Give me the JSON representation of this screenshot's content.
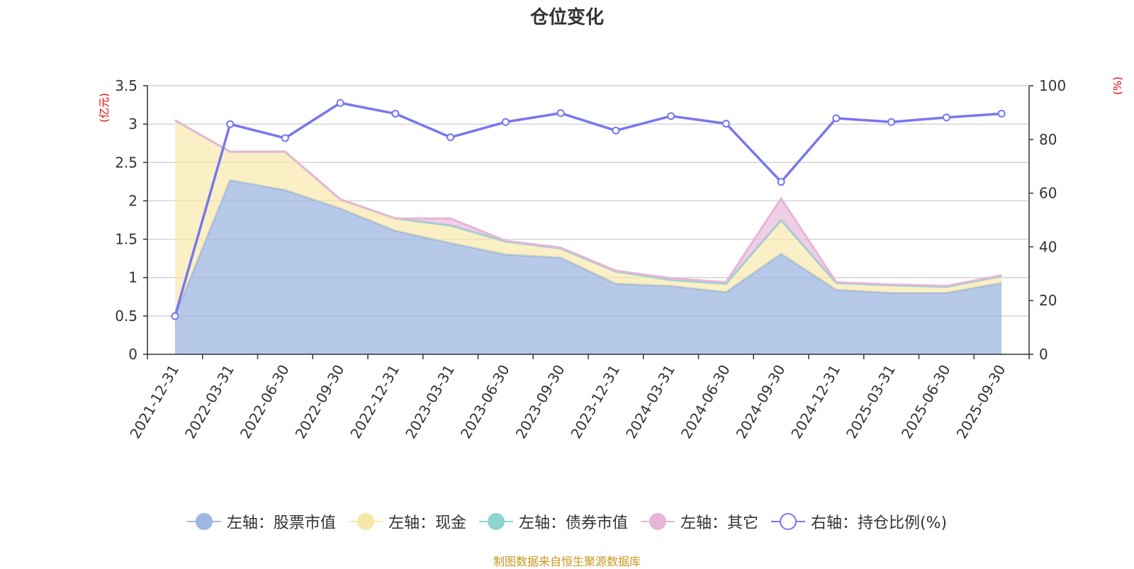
{
  "colors": {
    "stock": "#9db7e0",
    "cash": "#f7e7a6",
    "bond": "#8dd4d2",
    "other": "#e6b6d8",
    "ratio": "#7777ee",
    "unit": "#ee0000",
    "source": "#c8961e"
  },
  "source_note": "制图数据来自恒生聚源数据库",
  "chart_data": {
    "type": "area",
    "title": "仓位变化",
    "categories": [
      "2021-12-31",
      "2022-03-31",
      "2022-06-30",
      "2022-09-30",
      "2022-12-31",
      "2023-03-31",
      "2023-06-30",
      "2023-09-30",
      "2023-12-31",
      "2024-03-31",
      "2024-06-30",
      "2024-09-30",
      "2024-12-31",
      "2025-03-31",
      "2025-06-30",
      "2025-09-30"
    ],
    "left_axis": {
      "unit": "(亿元)",
      "ylim": [
        0,
        3.5
      ],
      "ticks": [
        "0",
        "0.5",
        "1",
        "1.5",
        "2",
        "2.5",
        "3",
        "3.5"
      ]
    },
    "right_axis": {
      "unit": "(%)",
      "ylim": [
        0,
        100
      ],
      "ticks": [
        "0",
        "20",
        "40",
        "60",
        "80",
        "100"
      ]
    },
    "grid": true,
    "series": [
      {
        "name": "左轴：股票市值",
        "axis": "left",
        "type": "area",
        "values": [
          0.5,
          2.27,
          2.14,
          1.9,
          1.61,
          1.45,
          1.3,
          1.26,
          0.92,
          0.89,
          0.81,
          1.31,
          0.84,
          0.8,
          0.8,
          0.93
        ]
      },
      {
        "name": "左轴：现金",
        "axis": "left",
        "type": "area",
        "values": [
          2.55,
          0.37,
          0.5,
          0.12,
          0.16,
          0.23,
          0.17,
          0.12,
          0.16,
          0.08,
          0.11,
          0.44,
          0.09,
          0.1,
          0.08,
          0.09
        ]
      },
      {
        "name": "左轴：债券市值",
        "axis": "left",
        "type": "area",
        "values": [
          0,
          0,
          0,
          0,
          0,
          0,
          0,
          0,
          0,
          0,
          0,
          0,
          0,
          0,
          0,
          0
        ]
      },
      {
        "name": "左轴：其它",
        "axis": "left",
        "type": "area",
        "values": [
          0,
          0,
          0,
          0,
          0,
          0.09,
          0.01,
          0.01,
          0.01,
          0.02,
          0.02,
          0.28,
          0.01,
          0.01,
          0.01,
          0.01
        ]
      },
      {
        "name": "右轴：持仓比例(%)",
        "axis": "right",
        "type": "line",
        "values": [
          14.2,
          85.7,
          80.5,
          93.6,
          89.6,
          80.8,
          86.5,
          89.8,
          83.3,
          88.7,
          85.9,
          64.2,
          87.9,
          86.5,
          88.2,
          89.6
        ]
      }
    ]
  }
}
